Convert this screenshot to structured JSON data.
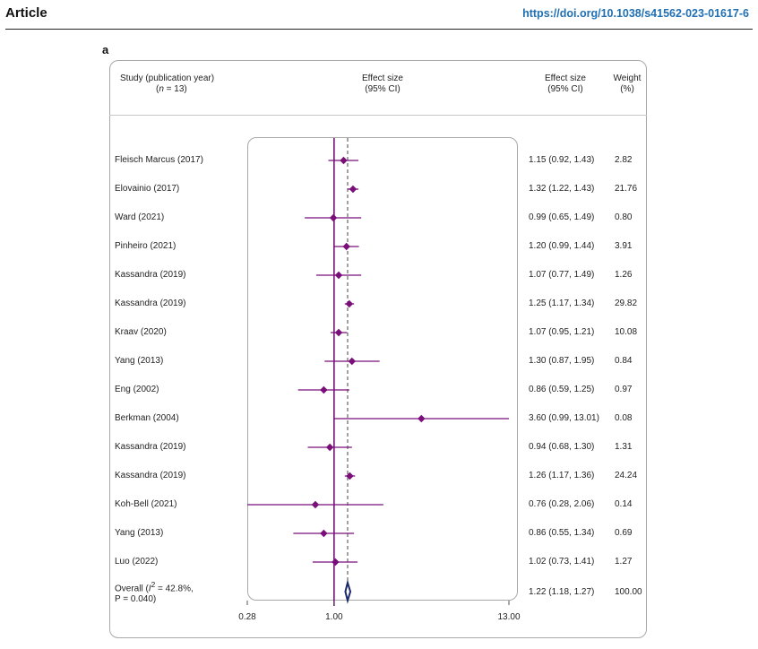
{
  "header": {
    "journal_section": "Article",
    "doi": "https://doi.org/10.1038/s41562-023-01617-6"
  },
  "panel": {
    "label": "a"
  },
  "columns": {
    "study_line1": "Study (publication year)",
    "study_line2_prefix": "(",
    "study_line2_n": "n",
    "study_line2_rest": " = 13)",
    "effect_line1": "Effect size",
    "effect_line2": "(95% CI)",
    "effect_text_line1": "Effect size",
    "effect_text_line2": "(95% CI)",
    "weight_line1": "Weight",
    "weight_line2": "(%)"
  },
  "colors": {
    "study_marker": "#7a0f7a",
    "overall_marker": "#1b2a6b",
    "doi_link": "#1f6fb2"
  },
  "chart_data": {
    "type": "forest",
    "scale": "log",
    "xlim": [
      0.28,
      13.0
    ],
    "xticks": [
      0.28,
      1.0,
      13.0
    ],
    "xtick_labels": [
      "0.28",
      "1.00",
      "13.00"
    ],
    "null_line": 1.0,
    "pooled_line": 1.22,
    "studies": [
      {
        "study": "Fleisch Marcus (2017)",
        "es": 1.15,
        "lo": 0.92,
        "hi": 1.43,
        "es_text": "1.15 (0.92, 1.43)",
        "weight": "2.82"
      },
      {
        "study": "Elovainio (2017)",
        "es": 1.32,
        "lo": 1.22,
        "hi": 1.43,
        "es_text": "1.32 (1.22, 1.43)",
        "weight": "21.76"
      },
      {
        "study": "Ward (2021)",
        "es": 0.99,
        "lo": 0.65,
        "hi": 1.49,
        "es_text": "0.99 (0.65, 1.49)",
        "weight": "0.80"
      },
      {
        "study": "Pinheiro (2021)",
        "es": 1.2,
        "lo": 0.99,
        "hi": 1.44,
        "es_text": "1.20 (0.99, 1.44)",
        "weight": "3.91"
      },
      {
        "study": "Kassandra (2019)",
        "es": 1.07,
        "lo": 0.77,
        "hi": 1.49,
        "es_text": "1.07 (0.77, 1.49)",
        "weight": "1.26"
      },
      {
        "study": "Kassandra (2019)",
        "es": 1.25,
        "lo": 1.17,
        "hi": 1.34,
        "es_text": "1.25 (1.17, 1.34)",
        "weight": "29.82"
      },
      {
        "study": "Kraav (2020)",
        "es": 1.07,
        "lo": 0.95,
        "hi": 1.21,
        "es_text": "1.07 (0.95, 1.21)",
        "weight": "10.08"
      },
      {
        "study": "Yang (2013)",
        "es": 1.3,
        "lo": 0.87,
        "hi": 1.95,
        "es_text": "1.30 (0.87, 1.95)",
        "weight": "0.84"
      },
      {
        "study": "Eng (2002)",
        "es": 0.86,
        "lo": 0.59,
        "hi": 1.25,
        "es_text": "0.86 (0.59, 1.25)",
        "weight": "0.97"
      },
      {
        "study": "Berkman (2004)",
        "es": 3.6,
        "lo": 0.99,
        "hi": 13.01,
        "es_text": "3.60 (0.99, 13.01)",
        "weight": "0.08"
      },
      {
        "study": "Kassandra (2019)",
        "es": 0.94,
        "lo": 0.68,
        "hi": 1.3,
        "es_text": "0.94 (0.68, 1.30)",
        "weight": "1.31"
      },
      {
        "study": "Kassandra (2019)",
        "es": 1.26,
        "lo": 1.17,
        "hi": 1.36,
        "es_text": "1.26 (1.17, 1.36)",
        "weight": "24.24"
      },
      {
        "study": "Koh-Bell (2021)",
        "es": 0.76,
        "lo": 0.28,
        "hi": 2.06,
        "es_text": "0.76 (0.28, 2.06)",
        "weight": "0.14"
      },
      {
        "study": "Yang (2013)",
        "es": 0.86,
        "lo": 0.55,
        "hi": 1.34,
        "es_text": "0.86 (0.55, 1.34)",
        "weight": "0.69"
      },
      {
        "study": "Luo (2022)",
        "es": 1.02,
        "lo": 0.73,
        "hi": 1.41,
        "es_text": "1.02 (0.73, 1.41)",
        "weight": "1.27"
      }
    ],
    "overall": {
      "label_line1_prefix": "Overall (",
      "label_i": "I",
      "label_sup": "2",
      "label_line1_rest": " = 42.8%,",
      "label_line2": "P = 0.040)",
      "es": 1.22,
      "lo": 1.18,
      "hi": 1.27,
      "es_text": "1.22 (1.18, 1.27)",
      "weight": "100.00"
    }
  }
}
